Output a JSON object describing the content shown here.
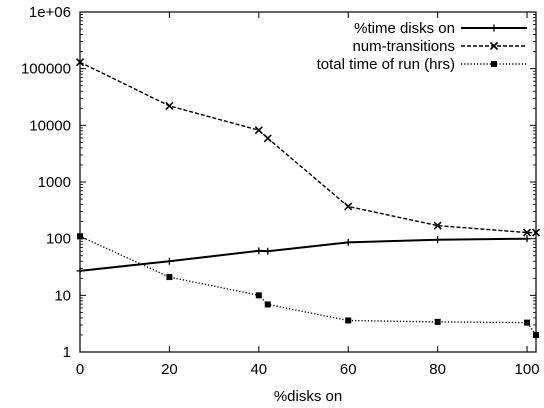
{
  "chart_data": {
    "type": "line",
    "title": "",
    "xlabel": "%disks on",
    "ylabel": "",
    "xlim": [
      0,
      102
    ],
    "ylim": [
      1,
      1000000
    ],
    "yscale": "log",
    "grid": false,
    "legend_position": "top-right",
    "x_ticks": [
      0,
      20,
      40,
      60,
      80,
      100
    ],
    "x_tick_labels": [
      "0",
      "20",
      "40",
      "60",
      "80",
      "100"
    ],
    "y_ticks": [
      1,
      10,
      100,
      1000,
      10000,
      100000,
      1000000
    ],
    "y_tick_labels": [
      "1",
      "10",
      "100",
      "1000",
      "10000",
      "100000",
      "1e+06"
    ],
    "series": [
      {
        "name": "%time disks on",
        "line_style": "solid",
        "marker": "plus",
        "color": "#000000",
        "x": [
          0,
          20,
          40,
          42,
          60,
          80,
          100
        ],
        "y": [
          27,
          40,
          61,
          60,
          86,
          96,
          100
        ]
      },
      {
        "name": "num-transitions",
        "line_style": "dashed",
        "marker": "cross",
        "color": "#000000",
        "x": [
          0,
          20,
          40,
          42,
          60,
          80,
          100,
          102
        ],
        "y": [
          130000,
          22000,
          8200,
          5900,
          370,
          170,
          128,
          128
        ]
      },
      {
        "name": "total time of run (hrs)",
        "line_style": "dotted",
        "marker": "square",
        "color": "#000000",
        "x": [
          0,
          20,
          40,
          42,
          60,
          80,
          100,
          102
        ],
        "y": [
          110,
          21,
          10,
          6.9,
          3.6,
          3.4,
          3.3,
          2.0
        ]
      }
    ]
  }
}
